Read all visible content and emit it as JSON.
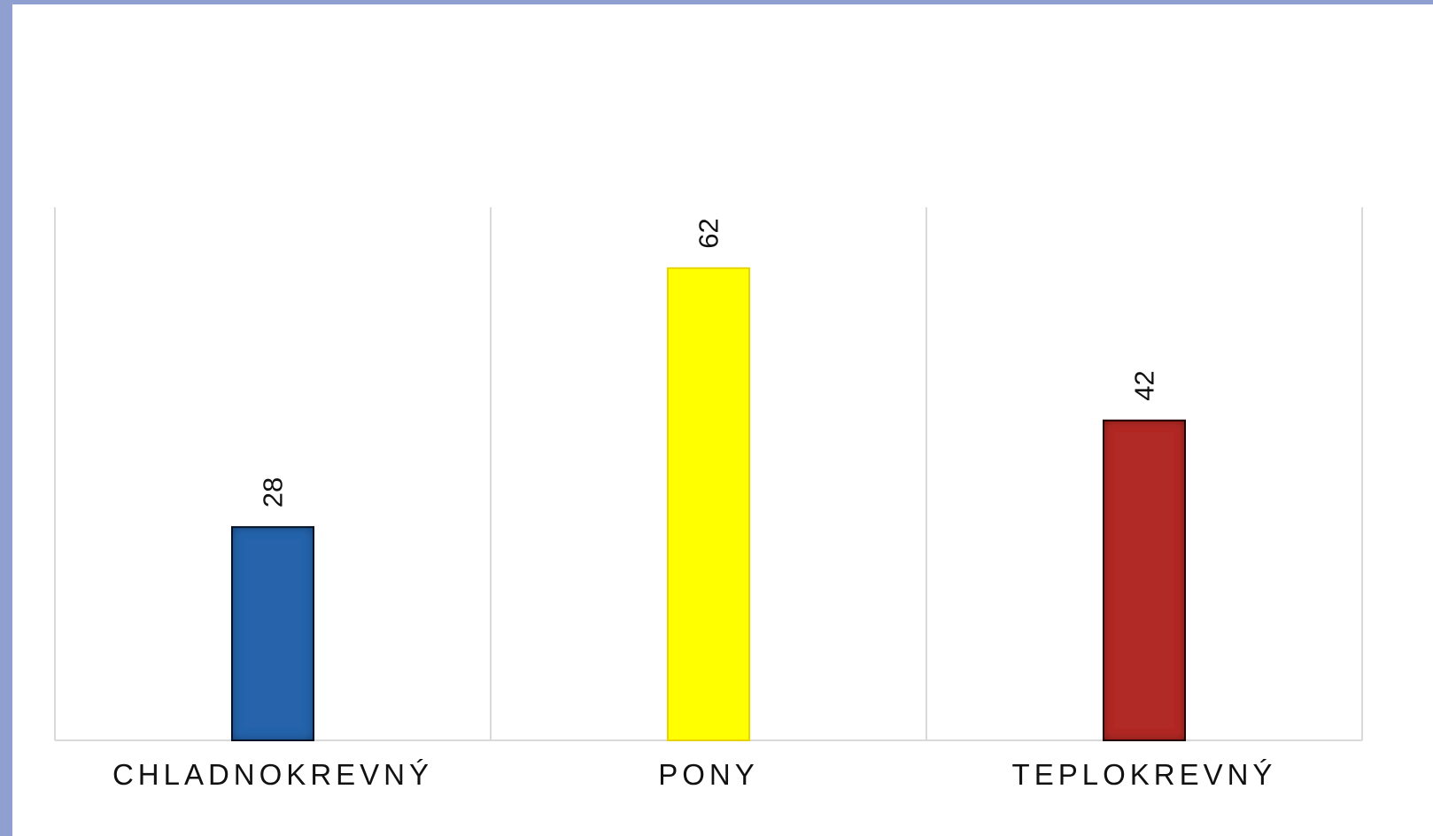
{
  "chart_data": {
    "type": "bar",
    "categories": [
      "CHLADNOKREVNÝ",
      "PONY",
      "TEPLOKREVNÝ"
    ],
    "values": [
      28,
      62,
      42
    ],
    "colors": [
      "#2863ab",
      "#ffff00",
      "#b22a28"
    ],
    "border_colors": [
      "#0b1d33",
      "#e8d300",
      "#2e0808"
    ],
    "ylim": [
      0,
      70
    ],
    "grid": "vertical"
  }
}
